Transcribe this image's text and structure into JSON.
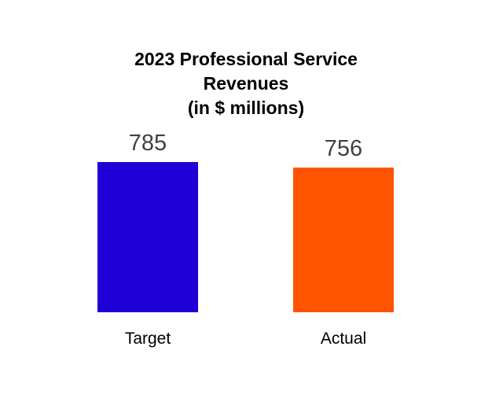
{
  "chart_data": {
    "type": "bar",
    "title_lines": [
      "2023 Professional Service",
      "Revenues",
      "(in $ millions)"
    ],
    "categories": [
      "Target",
      "Actual"
    ],
    "values": [
      785,
      756
    ],
    "data_labels": [
      "785",
      "756"
    ],
    "colors": [
      "#1f00d6",
      "#ff5500"
    ],
    "grid": false,
    "legend": "none",
    "xlabel": "",
    "ylabel": ""
  }
}
